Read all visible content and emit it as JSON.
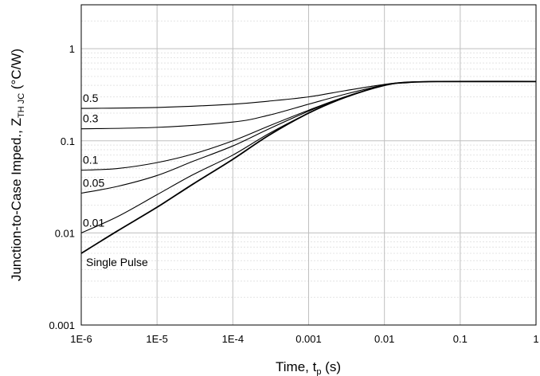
{
  "chart_data": {
    "type": "line",
    "xlabel": {
      "main": "Time, t",
      "sub": "p",
      "unit": " (s)"
    },
    "ylabel": {
      "main": "Junction-to-Case Imped., Z",
      "sub": "TH JC",
      "unit": " (°C/W)"
    },
    "x_scale": "log",
    "y_scale": "log",
    "xlim": [
      1e-06,
      1
    ],
    "ylim": [
      0.001,
      3
    ],
    "x_ticks": [
      1e-06,
      1e-05,
      0.0001,
      0.001,
      0.01,
      0.1,
      1
    ],
    "x_tick_labels": [
      "1E-6",
      "1E-5",
      "1E-4",
      "0.001",
      "0.01",
      "0.1",
      "1"
    ],
    "y_ticks": [
      0.001,
      0.01,
      0.1,
      1
    ],
    "y_tick_labels": [
      "0.001",
      "0.01",
      "0.1",
      "1"
    ],
    "grid": true,
    "legend": "none",
    "series": [
      {
        "name": "0.5",
        "x": [
          1e-06,
          1e-05,
          0.0001,
          0.0003,
          0.001,
          0.003,
          0.01,
          0.02,
          0.05,
          1
        ],
        "y": [
          0.225,
          0.23,
          0.25,
          0.27,
          0.3,
          0.35,
          0.41,
          0.435,
          0.44,
          0.44
        ]
      },
      {
        "name": "0.3",
        "x": [
          1e-06,
          1e-05,
          0.0001,
          0.0003,
          0.001,
          0.003,
          0.01,
          0.02,
          0.05,
          1
        ],
        "y": [
          0.135,
          0.14,
          0.16,
          0.19,
          0.25,
          0.32,
          0.405,
          0.43,
          0.44,
          0.44
        ]
      },
      {
        "name": "0.1",
        "x": [
          1e-06,
          3e-06,
          1e-05,
          3e-05,
          0.0001,
          0.0003,
          0.001,
          0.003,
          0.01,
          0.02,
          0.05,
          1
        ],
        "y": [
          0.048,
          0.05,
          0.058,
          0.072,
          0.1,
          0.145,
          0.215,
          0.3,
          0.4,
          0.43,
          0.44,
          0.44
        ]
      },
      {
        "name": "0.05",
        "x": [
          1e-06,
          3e-06,
          1e-05,
          3e-05,
          0.0001,
          0.0003,
          0.001,
          0.003,
          0.01,
          0.02,
          0.05,
          1
        ],
        "y": [
          0.027,
          0.032,
          0.042,
          0.06,
          0.088,
          0.135,
          0.21,
          0.3,
          0.4,
          0.43,
          0.44,
          0.44
        ]
      },
      {
        "name": "0.01",
        "x": [
          1e-06,
          3e-06,
          1e-05,
          3e-05,
          0.0001,
          0.0003,
          0.001,
          0.003,
          0.01,
          0.02,
          0.05,
          1
        ],
        "y": [
          0.01,
          0.015,
          0.026,
          0.043,
          0.07,
          0.12,
          0.2,
          0.295,
          0.4,
          0.43,
          0.44,
          0.44
        ]
      },
      {
        "name": "Single Pulse",
        "x": [
          1e-06,
          3e-06,
          1e-05,
          3e-05,
          0.0001,
          0.0003,
          0.001,
          0.003,
          0.01,
          0.02,
          0.05,
          1
        ],
        "y": [
          0.006,
          0.0105,
          0.019,
          0.034,
          0.063,
          0.115,
          0.2,
          0.295,
          0.4,
          0.43,
          0.44,
          0.44
        ]
      }
    ],
    "annotations": [
      "0.5",
      "0.3",
      "0.1",
      "0.05",
      "0.01",
      "Single Pulse"
    ]
  }
}
